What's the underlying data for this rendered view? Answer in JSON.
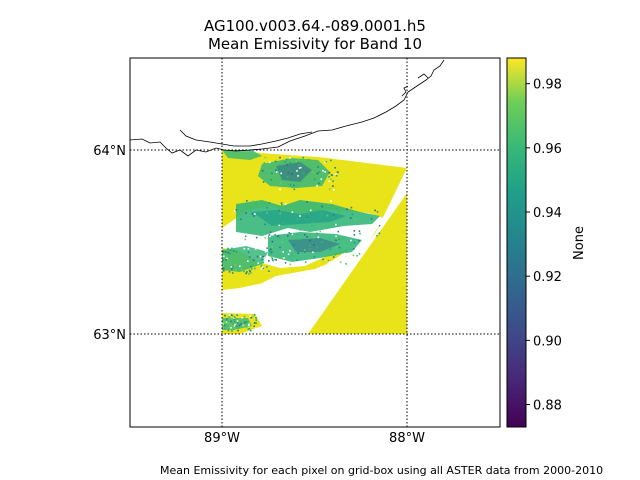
{
  "title": "AG100.v003.64.-089.0001.h5",
  "subtitle": "Mean Emissivity for Band 10",
  "footnote": "Mean Emissivity for each pixel on grid-box using all ASTER data from 2000-2010",
  "chart_data": {
    "type": "heatmap",
    "map": {
      "lon_range": [
        -89.5,
        -87.5
      ],
      "lat_range": [
        62.5,
        64.5
      ],
      "gridlines": true,
      "gridline_style": "dotted",
      "x_ticks": [
        {
          "value": -89,
          "label": "89°W"
        },
        {
          "value": -88,
          "label": "88°W"
        }
      ],
      "y_ticks": [
        {
          "value": 64,
          "label": "64°N"
        },
        {
          "value": 63,
          "label": "63°N"
        }
      ],
      "data_extent": {
        "lon": [
          -89,
          -88
        ],
        "lat": [
          63,
          64
        ]
      },
      "coastline": true
    },
    "colorbar": {
      "label": "None",
      "colormap": "viridis",
      "range": [
        0.873,
        0.988
      ],
      "ticks": [
        {
          "value": 0.88,
          "label": "0.88"
        },
        {
          "value": 0.9,
          "label": "0.90"
        },
        {
          "value": 0.92,
          "label": "0.92"
        },
        {
          "value": 0.94,
          "label": "0.94"
        },
        {
          "value": 0.96,
          "label": "0.96"
        },
        {
          "value": 0.98,
          "label": "0.98"
        }
      ]
    },
    "dominant_value": 0.985,
    "colors": {
      "high": "#e8e419",
      "mid": "#35b779",
      "low": "#31688e"
    }
  }
}
